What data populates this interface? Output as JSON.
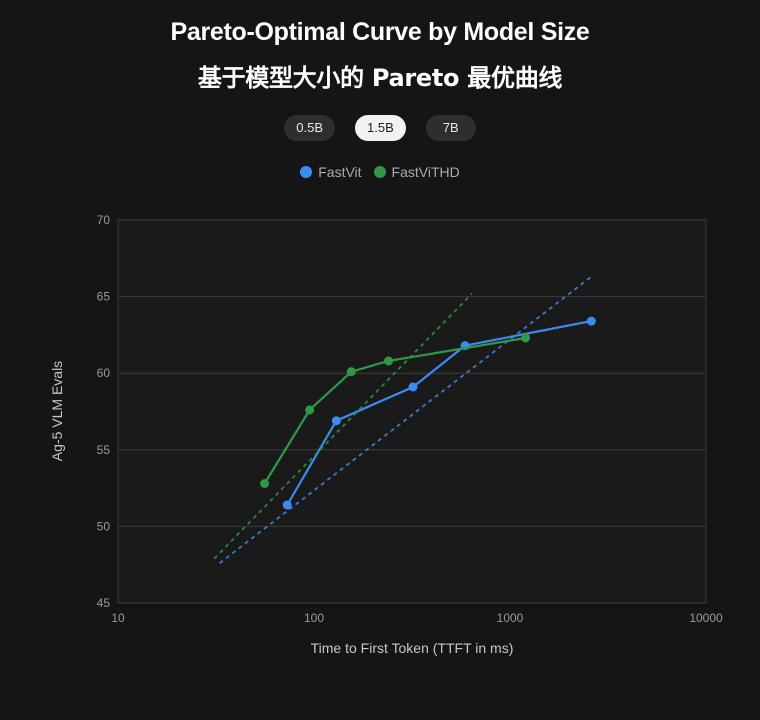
{
  "title_en": "Pareto-Optimal Curve by Model Size",
  "title_zh": "基于模型大小的 Pareto 最优曲线",
  "tabs": [
    {
      "label": "0.5B",
      "active": false
    },
    {
      "label": "1.5B",
      "active": true
    },
    {
      "label": "7B",
      "active": false
    }
  ],
  "colors": {
    "fastvit": "#3b8cf0",
    "fastvithd": "#2e9a47"
  },
  "chart_data": {
    "type": "line",
    "title": "Pareto-Optimal Curve by Model Size",
    "xlabel": "Time to First Token (TTFT in ms)",
    "ylabel": "Ag-5 VLM Evals",
    "xscale": "log",
    "xlim": [
      10,
      10000
    ],
    "ylim": [
      45,
      70
    ],
    "xticks": [
      "10",
      "100",
      "1000",
      "10000"
    ],
    "yticks": [
      "45",
      "50",
      "55",
      "60",
      "65",
      "70"
    ],
    "legend_position": "top",
    "grid": "horizontal",
    "series": [
      {
        "name": "FastVit",
        "color": "#3b8cf0",
        "points": [
          [
            73,
            51.4
          ],
          [
            130,
            56.9
          ],
          [
            320,
            59.1
          ],
          [
            590,
            61.8
          ],
          [
            2600,
            63.4
          ]
        ],
        "trend": [
          [
            33,
            47.6
          ],
          [
            2600,
            66.3
          ]
        ]
      },
      {
        "name": "FastViTHD",
        "color": "#2e9a47",
        "points": [
          [
            56,
            52.8
          ],
          [
            95,
            57.6
          ],
          [
            155,
            60.1
          ],
          [
            240,
            60.8
          ],
          [
            1200,
            62.3
          ]
        ],
        "trend": [
          [
            31,
            47.9
          ],
          [
            640,
            65.2
          ]
        ]
      }
    ]
  }
}
